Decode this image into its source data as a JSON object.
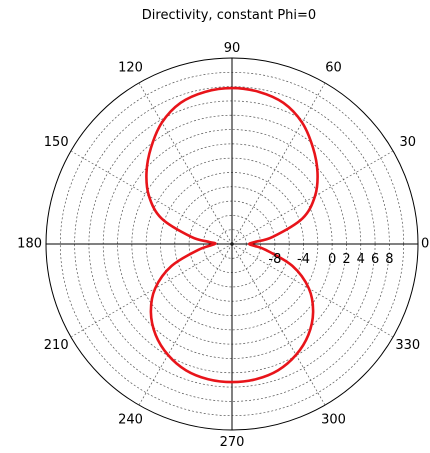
{
  "chart_data": {
    "type": "polar-line",
    "title": "Directivity, constant Phi=0",
    "angle_unit": "degrees",
    "angle_zero": "right",
    "angle_direction": "counterclockwise",
    "angle_ticks": [
      0,
      30,
      60,
      90,
      120,
      150,
      180,
      210,
      240,
      270,
      300,
      330
    ],
    "angle_tick_labels": [
      "0",
      "30",
      "60",
      "90",
      "120",
      "150",
      "180",
      "210",
      "240",
      "270",
      "300",
      "330"
    ],
    "r_range": [
      -14,
      12
    ],
    "r_gridlines": [
      -12,
      -10,
      -8,
      -6,
      -4,
      -2,
      0,
      2,
      4,
      6,
      8,
      10,
      12
    ],
    "r_tick_labels": [
      "-8",
      "-4",
      "0",
      "2",
      "4",
      "6",
      "8"
    ],
    "r_tick_values": [
      -8,
      -4,
      0,
      2,
      4,
      6,
      8
    ],
    "grid": true,
    "series": [
      {
        "color": "#e8141a",
        "theta": [
          0,
          5,
          10,
          20,
          30,
          40,
          50,
          60,
          70,
          80,
          90,
          100,
          110,
          120,
          130,
          140,
          150,
          160,
          170,
          175,
          180,
          190,
          200,
          210,
          220,
          230,
          240,
          250,
          260,
          270,
          280,
          290,
          300,
          310,
          320,
          330,
          340,
          350,
          355,
          360
        ],
        "r": [
          -11.6,
          -10.8,
          -8.2,
          -3.5,
          -0.6,
          1.6,
          3.6,
          5.6,
          7.0,
          7.6,
          7.8,
          7.6,
          7.0,
          5.6,
          3.6,
          1.6,
          -0.6,
          -3.5,
          -8.2,
          -10.8,
          -11.6,
          -9.2,
          -5.0,
          -1.6,
          0.8,
          2.6,
          3.9,
          4.8,
          5.2,
          5.3,
          5.2,
          4.8,
          3.9,
          2.6,
          0.8,
          -1.6,
          -5.0,
          -9.2,
          -10.8,
          -11.6
        ]
      }
    ]
  }
}
